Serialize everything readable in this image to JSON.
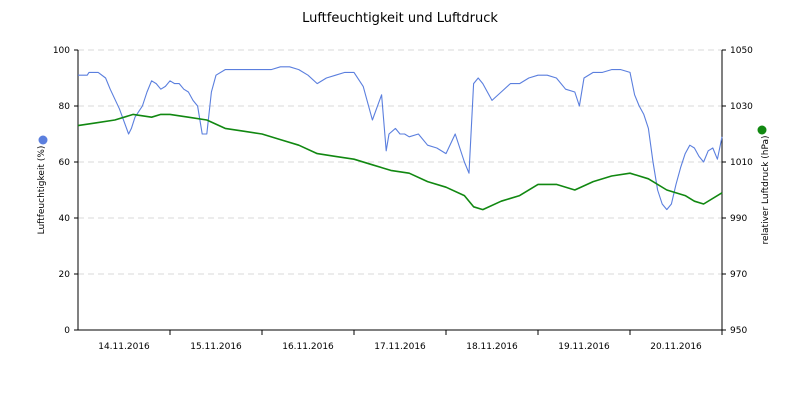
{
  "chart_data": {
    "type": "line",
    "title": "Luftfeuchtigkeit und Luftdruck",
    "xlabel": "",
    "ylabel_left": "Luftfeuchtigkeit (%)",
    "ylabel_right": "relativer Luftdruck (hPa)",
    "ylim_left": [
      0,
      100
    ],
    "ylim_right": [
      950,
      1050
    ],
    "yticks_left": [
      0,
      20,
      40,
      60,
      80,
      100
    ],
    "yticks_right": [
      950,
      970,
      990,
      1010,
      1030,
      1050
    ],
    "grid": true,
    "x_day_labels": [
      "14.11.2016",
      "15.11.2016",
      "16.11.2016",
      "17.11.2016",
      "18.11.2016",
      "19.11.2016",
      "20.11.2016"
    ],
    "x_range_days": [
      0,
      7.0
    ],
    "series": [
      {
        "axis": "left",
        "color": "#5b7fde",
        "values_x_days": [
          0.0,
          0.1,
          0.12,
          0.22,
          0.3,
          0.35,
          0.45,
          0.55,
          0.58,
          0.62,
          0.7,
          0.75,
          0.8,
          0.85,
          0.9,
          0.95,
          1.0,
          1.05,
          1.1,
          1.15,
          1.2,
          1.25,
          1.3,
          1.35,
          1.4,
          1.45,
          1.5,
          1.6,
          1.7,
          1.8,
          1.9,
          2.0,
          2.1,
          2.2,
          2.3,
          2.4,
          2.5,
          2.6,
          2.7,
          2.8,
          2.9,
          3.0,
          3.1,
          3.2,
          3.3,
          3.35,
          3.38,
          3.45,
          3.5,
          3.55,
          3.6,
          3.7,
          3.8,
          3.9,
          4.0,
          4.1,
          4.2,
          4.25,
          4.3,
          4.35,
          4.4,
          4.45,
          4.5,
          4.6,
          4.7,
          4.8,
          4.9,
          5.0,
          5.1,
          5.2,
          5.3,
          5.4,
          5.45,
          5.5,
          5.6,
          5.7,
          5.8,
          5.9,
          6.0,
          6.05,
          6.1,
          6.15,
          6.2,
          6.25,
          6.3,
          6.35,
          6.4,
          6.45,
          6.5,
          6.55,
          6.6,
          6.65,
          6.7,
          6.75,
          6.8,
          6.85,
          6.9,
          6.95,
          7.0
        ],
        "values_y": [
          91,
          91,
          92,
          92,
          90,
          86,
          79,
          70,
          72,
          76,
          80,
          85,
          89,
          88,
          86,
          87,
          89,
          88,
          88,
          86,
          85,
          82,
          80,
          70,
          70,
          85,
          91,
          93,
          93,
          93,
          93,
          93,
          93,
          94,
          94,
          93,
          91,
          88,
          90,
          91,
          92,
          92,
          87,
          75,
          84,
          64,
          70,
          72,
          70,
          70,
          69,
          70,
          66,
          65,
          63,
          70,
          60,
          56,
          88,
          90,
          88,
          85,
          82,
          85,
          88,
          88,
          90,
          91,
          91,
          90,
          86,
          85,
          80,
          90,
          92,
          92,
          93,
          93,
          92,
          84,
          80,
          77,
          72,
          60,
          50,
          45,
          43,
          45,
          52,
          58,
          63,
          66,
          65,
          62,
          60,
          64,
          65,
          61,
          69
        ]
      },
      {
        "axis": "right",
        "color": "#118811",
        "values_x_days": [
          0.0,
          0.2,
          0.4,
          0.6,
          0.8,
          0.9,
          1.0,
          1.2,
          1.4,
          1.6,
          1.8,
          2.0,
          2.2,
          2.4,
          2.6,
          2.8,
          3.0,
          3.2,
          3.4,
          3.6,
          3.8,
          4.0,
          4.2,
          4.3,
          4.4,
          4.6,
          4.8,
          5.0,
          5.2,
          5.4,
          5.6,
          5.8,
          6.0,
          6.2,
          6.4,
          6.6,
          6.7,
          6.8,
          7.0
        ],
        "values_y": [
          1023,
          1024,
          1025,
          1027,
          1026,
          1027,
          1027,
          1026,
          1025,
          1022,
          1021,
          1020,
          1018,
          1016,
          1013,
          1012,
          1011,
          1009,
          1007,
          1006,
          1003,
          1001,
          998,
          994,
          993,
          996,
          998,
          1002,
          1002,
          1000,
          1003,
          1005,
          1006,
          1004,
          1000,
          998,
          996,
          995,
          999
        ]
      }
    ]
  }
}
